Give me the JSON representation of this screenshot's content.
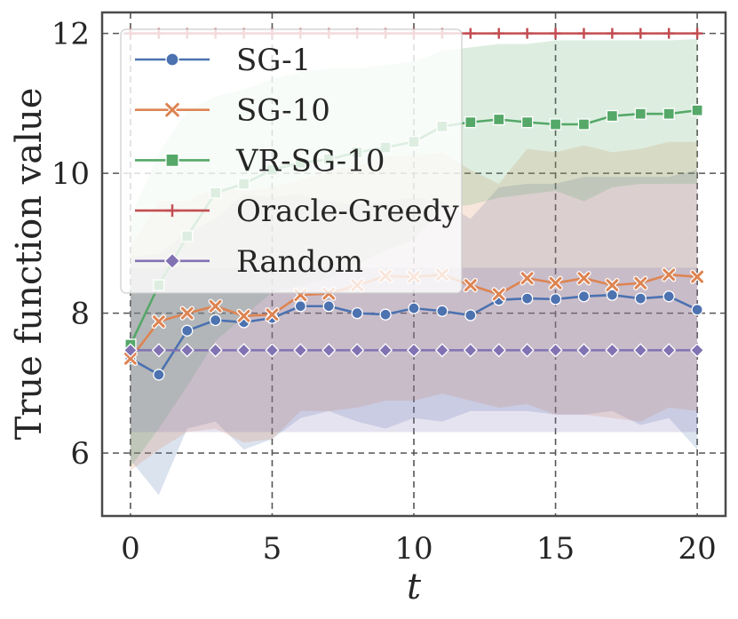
{
  "chart_data": {
    "type": "line",
    "title": "",
    "xlabel": "t",
    "ylabel": "True function value",
    "xlim": [
      -1,
      21
    ],
    "ylim": [
      5.1,
      12.3
    ],
    "xticks": [
      0,
      5,
      10,
      15,
      20
    ],
    "yticks": [
      6,
      8,
      10,
      12
    ],
    "grid": true,
    "legend_position": "top-left",
    "x": [
      0,
      1,
      2,
      3,
      4,
      5,
      6,
      7,
      8,
      9,
      10,
      11,
      12,
      13,
      14,
      15,
      16,
      17,
      18,
      19,
      20
    ],
    "series": [
      {
        "name": "SG-1",
        "color": "#4c72b0",
        "marker": "circle",
        "values": [
          7.35,
          7.12,
          7.75,
          7.9,
          7.87,
          7.93,
          8.1,
          8.1,
          8.0,
          7.98,
          8.07,
          8.03,
          7.97,
          8.19,
          8.21,
          8.2,
          8.24,
          8.26,
          8.21,
          8.24,
          8.05
        ],
        "lower": [
          5.9,
          5.4,
          6.35,
          6.45,
          6.05,
          6.2,
          6.5,
          6.6,
          6.45,
          6.35,
          6.5,
          6.45,
          6.6,
          6.6,
          6.6,
          6.55,
          6.55,
          6.6,
          6.4,
          6.5,
          6.05
        ],
        "upper": [
          8.8,
          8.85,
          9.15,
          9.35,
          9.7,
          9.65,
          9.7,
          9.6,
          9.55,
          9.6,
          9.65,
          9.6,
          9.35,
          9.8,
          9.85,
          9.85,
          9.95,
          9.95,
          9.95,
          9.95,
          10.05
        ]
      },
      {
        "name": "SG-10",
        "color": "#dd8452",
        "marker": "x",
        "values": [
          7.35,
          7.88,
          8.0,
          8.1,
          7.96,
          7.98,
          8.26,
          8.28,
          8.4,
          8.53,
          8.52,
          8.55,
          8.4,
          8.27,
          8.5,
          8.43,
          8.5,
          8.4,
          8.43,
          8.55,
          8.52
        ],
        "lower": [
          5.75,
          6.05,
          6.3,
          6.35,
          6.15,
          6.2,
          6.6,
          6.6,
          6.65,
          6.75,
          6.75,
          6.85,
          6.75,
          6.65,
          6.7,
          6.55,
          6.55,
          6.5,
          6.45,
          6.65,
          6.6
        ],
        "upper": [
          8.95,
          9.6,
          9.6,
          9.8,
          9.75,
          9.8,
          9.9,
          10.05,
          10.1,
          10.25,
          10.25,
          10.3,
          10.05,
          9.85,
          10.35,
          10.3,
          10.4,
          10.3,
          10.35,
          10.45,
          10.45
        ]
      },
      {
        "name": "VR-SG-10",
        "color": "#55a868",
        "marker": "square",
        "values": [
          7.55,
          8.4,
          9.1,
          9.72,
          9.85,
          10.05,
          10.15,
          10.2,
          10.3,
          10.37,
          10.45,
          10.67,
          10.73,
          10.77,
          10.73,
          10.7,
          10.7,
          10.82,
          10.85,
          10.85,
          10.9
        ],
        "lower": [
          5.8,
          6.35,
          6.95,
          7.6,
          7.95,
          8.3,
          8.4,
          8.5,
          8.7,
          8.9,
          9.05,
          9.5,
          9.55,
          9.65,
          9.7,
          9.75,
          9.6,
          9.8,
          9.85,
          9.85,
          9.85
        ],
        "upper": [
          9.35,
          10.3,
          10.9,
          11.1,
          11.2,
          11.35,
          11.45,
          11.5,
          11.5,
          11.55,
          11.6,
          11.75,
          11.8,
          11.85,
          11.85,
          11.9,
          11.9,
          11.9,
          11.9,
          11.9,
          11.92
        ]
      },
      {
        "name": "Oracle-Greedy",
        "color": "#c44e52",
        "marker": "plus",
        "values": [
          12.0,
          12.0,
          12.0,
          12.0,
          12.0,
          12.0,
          12.0,
          12.0,
          12.0,
          12.0,
          12.0,
          12.0,
          12.0,
          12.0,
          12.0,
          12.0,
          12.0,
          12.0,
          12.0,
          12.0,
          12.0
        ],
        "lower": [
          12.0,
          12.0,
          12.0,
          12.0,
          12.0,
          12.0,
          12.0,
          12.0,
          12.0,
          12.0,
          12.0,
          12.0,
          12.0,
          12.0,
          12.0,
          12.0,
          12.0,
          12.0,
          12.0,
          12.0,
          12.0
        ],
        "upper": [
          12.0,
          12.0,
          12.0,
          12.0,
          12.0,
          12.0,
          12.0,
          12.0,
          12.0,
          12.0,
          12.0,
          12.0,
          12.0,
          12.0,
          12.0,
          12.0,
          12.0,
          12.0,
          12.0,
          12.0,
          12.0
        ]
      },
      {
        "name": "Random",
        "color": "#8172b3",
        "marker": "diamond",
        "values": [
          7.47,
          7.47,
          7.47,
          7.47,
          7.47,
          7.47,
          7.47,
          7.47,
          7.47,
          7.47,
          7.47,
          7.47,
          7.47,
          7.47,
          7.47,
          7.47,
          7.47,
          7.47,
          7.47,
          7.47,
          7.47
        ],
        "lower": [
          6.3,
          6.3,
          6.3,
          6.3,
          6.3,
          6.3,
          6.3,
          6.3,
          6.3,
          6.3,
          6.3,
          6.3,
          6.3,
          6.3,
          6.3,
          6.3,
          6.3,
          6.3,
          6.3,
          6.3,
          6.3
        ],
        "upper": [
          8.65,
          8.65,
          8.65,
          8.65,
          8.65,
          8.65,
          8.65,
          8.65,
          8.65,
          8.65,
          8.65,
          8.65,
          8.65,
          8.65,
          8.65,
          8.65,
          8.65,
          8.65,
          8.65,
          8.65,
          8.65
        ]
      }
    ]
  }
}
